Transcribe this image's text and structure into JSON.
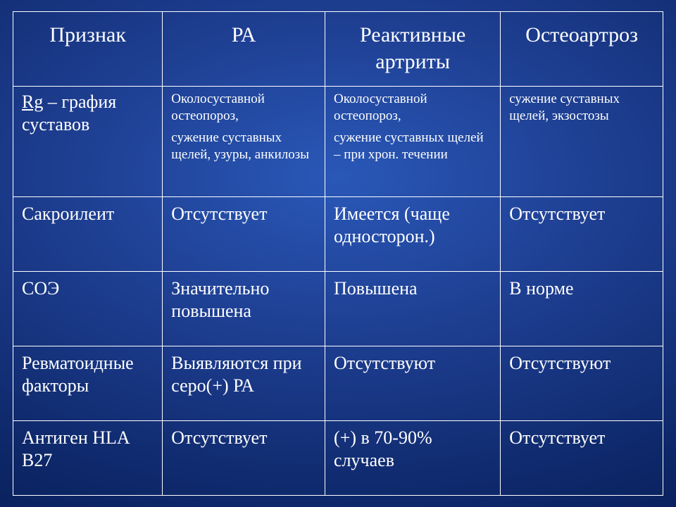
{
  "table": {
    "headers": [
      "Признак",
      "РА",
      "Реактивные артриты",
      "Остеоартроз"
    ],
    "rows": [
      {
        "feature_prefix": "Rg",
        "feature_rest": " – графия суставов",
        "ra_p1": "Околосуставной остеопороз,",
        "ra_p2": "сужение суставных щелей, узуры, анкилозы",
        "react_p1": "Околосуставной остеопороз,",
        "react_p2": "сужение суставных щелей – при хрон. течении",
        "osteo_p1": "сужение суставных щелей, экзостозы"
      },
      {
        "feature": "Сакроилеит",
        "ra": "Отсутствует",
        "react": "Имеется (чаще односторон.)",
        "osteo": "Отсутствует"
      },
      {
        "feature": "СОЭ",
        "ra": "Значительно повышена",
        "react": "Повышена",
        "osteo": "В норме"
      },
      {
        "feature": "Ревматоидные факторы",
        "ra": "Выявляются при серо(+) РА",
        "react": "Отсутствуют",
        "osteo": "Отсутствуют"
      },
      {
        "feature": "Антиген HLA B27",
        "ra": "Отсутствует",
        "react": "(+) в 70-90% случаев",
        "osteo": "Отсутствует"
      }
    ]
  },
  "style": {
    "background_gradient": [
      "#2a58b8",
      "#1d3d8f",
      "#0d2768",
      "#041749"
    ],
    "border_color": "#ffffff",
    "text_color": "#ffffff",
    "header_fontsize": 30,
    "body_fontsize": 26,
    "rg_detail_fontsize": 19,
    "font_family": "Times New Roman",
    "col_widths_pct": [
      23,
      25,
      27,
      25
    ]
  }
}
